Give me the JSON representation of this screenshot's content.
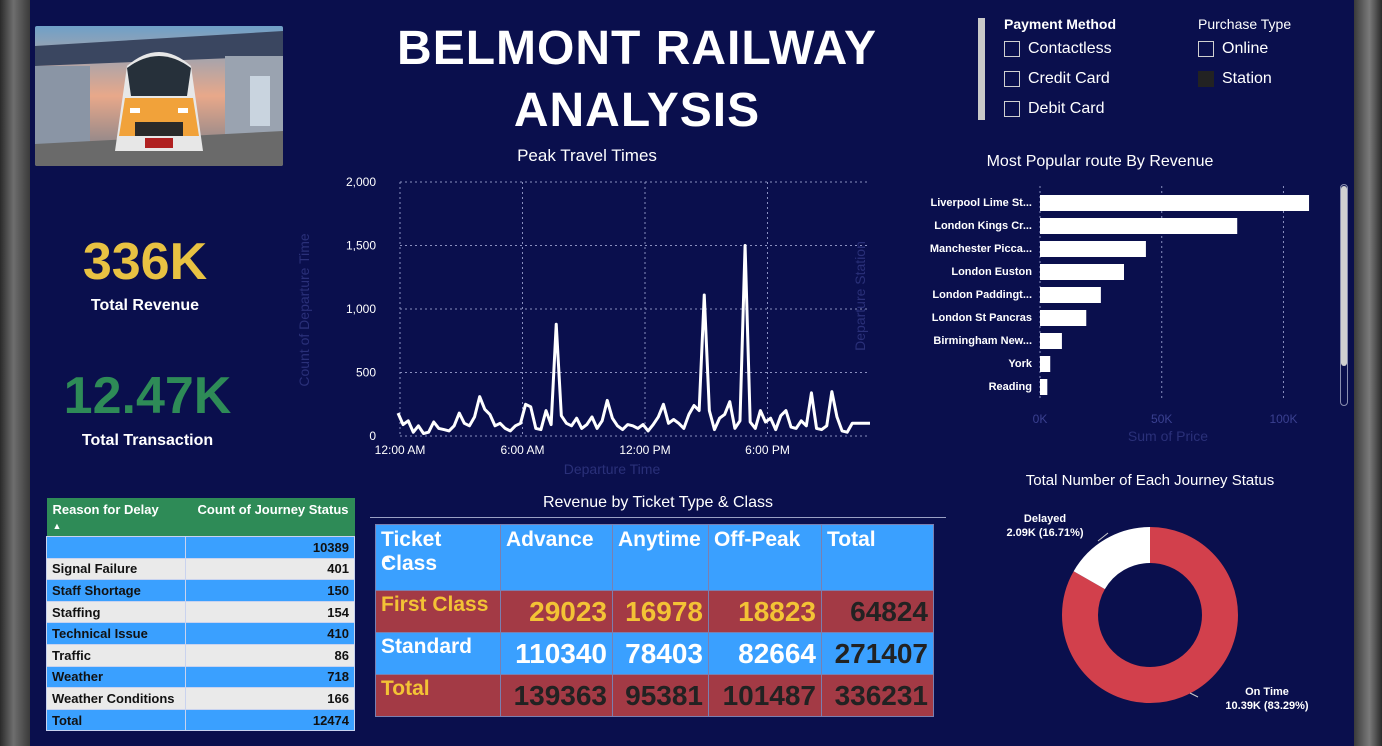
{
  "title_line1": "BELMONT RAILWAY",
  "title_line2": "ANALYSIS",
  "kpis": {
    "revenue_value": "336K",
    "revenue_label": "Total Revenue",
    "revenue_color": "#e8c242",
    "transaction_value": "12.47K",
    "transaction_label": "Total Transaction",
    "transaction_color": "#2e8b57"
  },
  "slicers": {
    "payment_method": {
      "title": "Payment Method",
      "options": [
        "Contactless",
        "Credit Card",
        "Debit Card"
      ]
    },
    "purchase_type": {
      "title": "Purchase Type",
      "options": [
        "Online",
        "Station"
      ],
      "selected": "Station"
    }
  },
  "peak_chart": {
    "title": "Peak Travel Times",
    "xlabel": "Departure Time",
    "ylabel": "Count of Departure Time",
    "y_ticks": [
      "2,000",
      "1,500",
      "1,000",
      "500",
      "0"
    ],
    "x_ticks": [
      "12:00 AM",
      "6:00 AM",
      "12:00 PM",
      "6:00 PM"
    ]
  },
  "route_chart": {
    "title": "Most Popular route By Revenue",
    "xlabel": "Sum of Price",
    "ylabel": "Departure Station",
    "x_ticks": [
      "0K",
      "50K",
      "100K"
    ]
  },
  "delay_table": {
    "col1": "Reason for Delay",
    "col2": "Count of Journey Status",
    "rows": [
      {
        "reason": "",
        "count": "10389"
      },
      {
        "reason": "Signal Failure",
        "count": "401"
      },
      {
        "reason": "Staff Shortage",
        "count": "150"
      },
      {
        "reason": "Staffing",
        "count": "154"
      },
      {
        "reason": "Technical Issue",
        "count": "410"
      },
      {
        "reason": "Traffic",
        "count": "86"
      },
      {
        "reason": "Weather",
        "count": "718"
      },
      {
        "reason": "Weather Conditions",
        "count": "166"
      },
      {
        "reason": "Total",
        "count": "12474"
      }
    ]
  },
  "revenue_table": {
    "title": "Revenue by Ticket Type & Class",
    "headers": [
      "Ticket Class",
      "Advance",
      "Anytime",
      "Off-Peak",
      "Total"
    ],
    "rows": [
      {
        "label": "First Class",
        "advance": "29023",
        "anytime": "16978",
        "offpeak": "18823",
        "total": "64824"
      },
      {
        "label": "Standard",
        "advance": "110340",
        "anytime": "78403",
        "offpeak": "82664",
        "total": "271407"
      },
      {
        "label": "Total",
        "advance": "139363",
        "anytime": "95381",
        "offpeak": "101487",
        "total": "336231"
      }
    ]
  },
  "donut": {
    "title": "Total Number of Each Journey Status",
    "delayed_label": "Delayed",
    "delayed_value": "2.09K (16.71%)",
    "ontime_label": "On Time",
    "ontime_value": "10.39K (83.29%)"
  },
  "chart_data": [
    {
      "type": "line",
      "title": "Peak Travel Times",
      "xlabel": "Departure Time",
      "ylabel": "Count of Departure Time",
      "ylim": [
        0,
        2000
      ],
      "xlim_hours": [
        0,
        24
      ],
      "x_ticks": [
        "12:00 AM",
        "6:00 AM",
        "12:00 PM",
        "6:00 PM"
      ],
      "grid": true,
      "series": [
        {
          "x_hours": [
            0,
            0.25,
            0.5,
            0.75,
            1,
            1.25,
            1.5,
            1.75,
            2,
            2.25,
            2.5,
            2.75,
            3,
            3.25,
            3.5,
            3.75,
            4,
            4.25,
            4.5,
            4.75,
            5,
            5.25,
            5.5,
            5.75,
            6,
            6.25,
            6.5,
            6.75,
            7,
            7.25,
            7.5,
            7.75,
            8,
            8.25,
            8.5,
            8.75,
            9,
            9.25,
            9.5,
            9.75,
            10,
            10.25,
            10.5,
            10.75,
            11,
            11.25,
            11.5,
            11.75,
            12,
            12.25,
            12.5,
            12.75,
            13,
            13.25,
            13.5,
            13.75,
            14,
            14.25,
            14.5,
            14.75,
            15,
            15.25,
            15.5,
            15.75,
            16,
            16.25,
            16.5,
            16.75,
            17,
            17.25,
            17.5,
            17.75,
            18,
            18.25,
            18.5,
            18.75,
            19,
            19.25,
            19.5,
            19.75,
            20,
            20.25,
            20.5,
            20.75,
            21,
            21.25,
            21.5,
            21.75,
            22,
            22.25,
            22.5,
            22.75,
            23,
            23.25,
            23.5,
            23.75
          ],
          "y": [
            180,
            90,
            120,
            30,
            80,
            20,
            30,
            110,
            60,
            50,
            40,
            80,
            180,
            100,
            80,
            150,
            310,
            210,
            170,
            80,
            100,
            60,
            40,
            80,
            100,
            250,
            230,
            60,
            50,
            200,
            90,
            880,
            160,
            100,
            80,
            140,
            60,
            90,
            150,
            60,
            120,
            280,
            140,
            80,
            50,
            90,
            80,
            60,
            90,
            40,
            90,
            150,
            250,
            100,
            130,
            100,
            60,
            170,
            240,
            200,
            1110,
            200,
            50,
            140,
            170,
            270,
            60,
            120,
            1500,
            110,
            60,
            200,
            110,
            140,
            50,
            160,
            200,
            70,
            60,
            120,
            80,
            340,
            60,
            50,
            80,
            350,
            150,
            40,
            30,
            100,
            100,
            100,
            100,
            100,
            100,
            100
          ]
        }
      ]
    },
    {
      "type": "bar",
      "orientation": "horizontal",
      "title": "Most Popular route By Revenue",
      "xlabel": "Sum of Price",
      "ylabel": "Departure Station",
      "xlim": [
        0,
        115000
      ],
      "categories": [
        "Liverpool Lime St...",
        "London Kings Cr...",
        "Manchester Picca...",
        "London Euston",
        "London Paddingt...",
        "London St Pancras",
        "Birmingham New...",
        "York",
        "Reading"
      ],
      "values": [
        110500,
        81000,
        43500,
        34500,
        25000,
        19000,
        9000,
        4200,
        3000
      ]
    },
    {
      "type": "pie",
      "title": "Total Number of Each Journey Status",
      "donut": true,
      "categories": [
        "On Time",
        "Delayed"
      ],
      "values": [
        10390,
        2090
      ],
      "colors": [
        "#d2404c",
        "#ffffff"
      ]
    }
  ]
}
